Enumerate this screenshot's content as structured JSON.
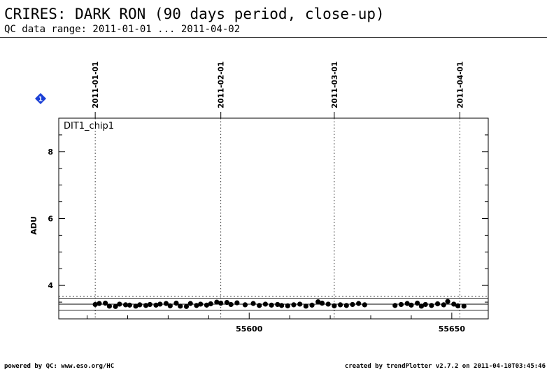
{
  "header": {
    "title": "CRIRES: DARK RON (90 days period, close-up)",
    "subtitle": "QC data range: 2011-01-01 ... 2011-04-02"
  },
  "footer": {
    "left": "powered by QC: www.eso.org/HC",
    "right": "created by trendPlotter v2.7.2 on 2011-04-10T03:45:46"
  },
  "badge": {
    "label": "1",
    "color": "#1a3fd6"
  },
  "chart_data": {
    "type": "scatter",
    "panel_label": "DIT1_chip1",
    "ylabel": "ADU",
    "xlim": [
      55553,
      55659
    ],
    "ylim": [
      3.0,
      9.0
    ],
    "x_ticks": [
      55600,
      55650
    ],
    "y_ticks": [
      4,
      6,
      8
    ],
    "date_lines": [
      {
        "label": "2011-01-01",
        "mjd": 55562
      },
      {
        "label": "2011-02-01",
        "mjd": 55593
      },
      {
        "label": "2011-03-01",
        "mjd": 55621
      },
      {
        "label": "2011-04-01",
        "mjd": 55652
      }
    ],
    "reference_lines": {
      "mean": 3.44,
      "band": [
        3.26,
        3.62
      ],
      "upper": 3.68
    },
    "point_color": "#000000",
    "series": [
      {
        "x": [
          55562.0,
          55563.0,
          55564.5,
          55565.5,
          55567.0,
          55568.0,
          55569.5,
          55570.5,
          55572.0,
          55573.0,
          55574.5,
          55575.5,
          55577.0,
          55578.0,
          55579.5,
          55580.5,
          55582.0,
          55583.0,
          55584.5,
          55585.5,
          55587.0,
          55588.0,
          55589.5,
          55590.5,
          55592.0,
          55593.0,
          55594.5,
          55595.5,
          55597.0,
          55599.0,
          55601.0,
          55602.5,
          55604.0,
          55605.5,
          55607.0,
          55608.0,
          55609.5,
          55611.0,
          55612.5,
          55614.0,
          55615.5,
          55617.0,
          55618.0,
          55619.5,
          55621.0,
          55622.5,
          55624.0,
          55625.5,
          55627.0,
          55628.5,
          55636.0,
          55637.5,
          55639.0,
          55640.0,
          55641.5,
          55642.5,
          55643.5,
          55645.0,
          55646.5,
          55648.0,
          55649.0,
          55650.5,
          55651.5,
          55653.0
        ],
        "y": [
          3.43,
          3.46,
          3.47,
          3.38,
          3.37,
          3.44,
          3.42,
          3.41,
          3.38,
          3.42,
          3.4,
          3.43,
          3.41,
          3.44,
          3.46,
          3.39,
          3.47,
          3.38,
          3.37,
          3.46,
          3.4,
          3.44,
          3.41,
          3.45,
          3.5,
          3.47,
          3.49,
          3.43,
          3.48,
          3.42,
          3.46,
          3.4,
          3.44,
          3.41,
          3.43,
          3.4,
          3.39,
          3.42,
          3.44,
          3.38,
          3.41,
          3.51,
          3.47,
          3.44,
          3.39,
          3.42,
          3.4,
          3.43,
          3.46,
          3.42,
          3.4,
          3.43,
          3.46,
          3.41,
          3.47,
          3.38,
          3.43,
          3.4,
          3.45,
          3.42,
          3.52,
          3.44,
          3.39,
          3.38
        ]
      }
    ]
  }
}
